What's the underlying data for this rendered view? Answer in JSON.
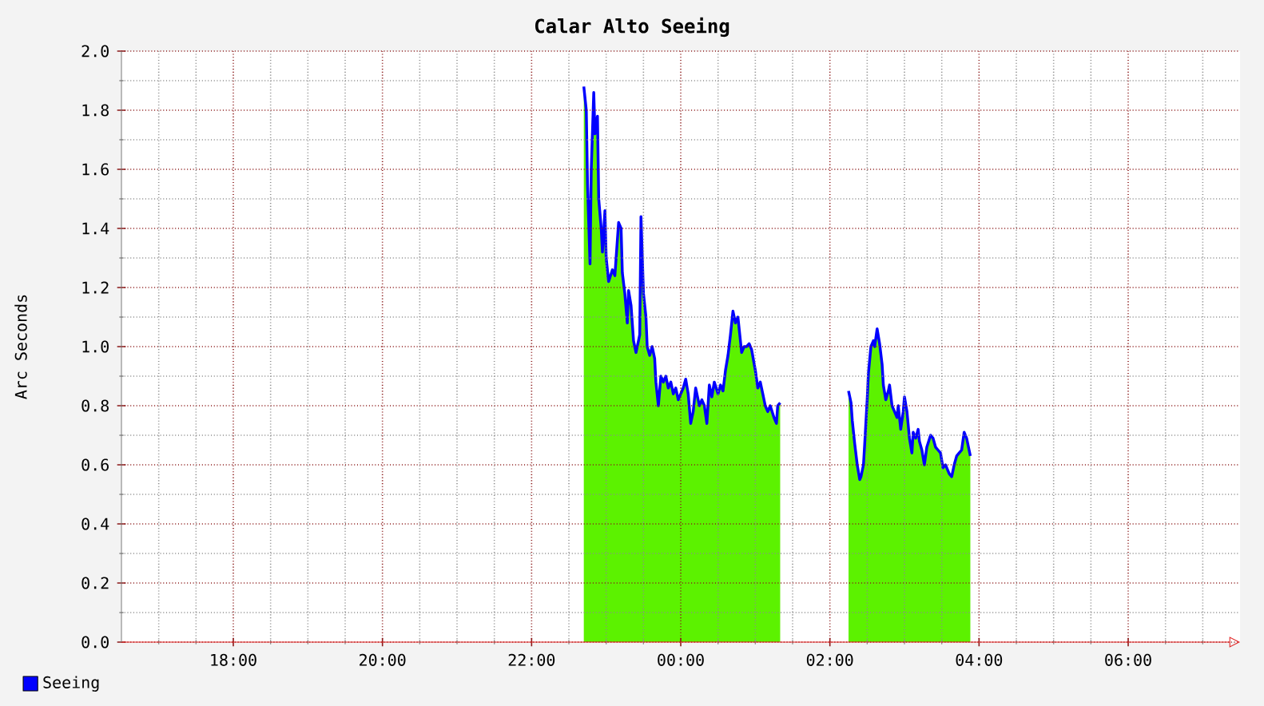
{
  "chart_data": {
    "type": "line",
    "title": "Calar Alto Seeing",
    "ylabel": "Arc Seconds",
    "x": [
      "2000-01-01T22:42",
      "2000-01-01T22:44",
      "2000-01-01T22:45",
      "2000-01-01T22:47",
      "2000-01-01T22:48",
      "2000-01-01T22:50",
      "2000-01-01T22:51",
      "2000-01-01T22:53",
      "2000-01-01T22:54",
      "2000-01-01T22:56",
      "2000-01-01T22:57",
      "2000-01-01T22:59",
      "2000-01-01T23:00",
      "2000-01-01T23:02",
      "2000-01-01T23:05",
      "2000-01-01T23:07",
      "2000-01-01T23:10",
      "2000-01-01T23:12",
      "2000-01-01T23:13",
      "2000-01-01T23:15",
      "2000-01-01T23:17",
      "2000-01-01T23:18",
      "2000-01-01T23:20",
      "2000-01-01T23:22",
      "2000-01-01T23:24",
      "2000-01-01T23:25",
      "2000-01-01T23:27",
      "2000-01-01T23:28",
      "2000-01-01T23:30",
      "2000-01-01T23:32",
      "2000-01-01T23:33",
      "2000-01-01T23:35",
      "2000-01-01T23:37",
      "2000-01-01T23:39",
      "2000-01-01T23:40",
      "2000-01-01T23:42",
      "2000-01-01T23:44",
      "2000-01-01T23:46",
      "2000-01-01T23:48",
      "2000-01-01T23:50",
      "2000-01-01T23:52",
      "2000-01-01T23:54",
      "2000-01-01T23:56",
      "2000-01-01T23:58",
      "2000-01-02T00:00",
      "2000-01-02T00:02",
      "2000-01-02T00:04",
      "2000-01-02T00:06",
      "2000-01-02T00:08",
      "2000-01-02T00:10",
      "2000-01-02T00:12",
      "2000-01-02T00:15",
      "2000-01-02T00:17",
      "2000-01-02T00:19",
      "2000-01-02T00:21",
      "2000-01-02T00:23",
      "2000-01-02T00:25",
      "2000-01-02T00:27",
      "2000-01-02T00:30",
      "2000-01-02T00:32",
      "2000-01-02T00:34",
      "2000-01-02T00:36",
      "2000-01-02T00:38",
      "2000-01-02T00:40",
      "2000-01-02T00:42",
      "2000-01-02T00:44",
      "2000-01-02T00:46",
      "2000-01-02T00:48",
      "2000-01-02T00:49",
      "2000-01-02T00:51",
      "2000-01-02T00:53",
      "2000-01-02T00:55",
      "2000-01-02T00:57",
      "2000-01-02T01:00",
      "2000-01-02T01:02",
      "2000-01-02T01:04",
      "2000-01-02T01:06",
      "2000-01-02T01:08",
      "2000-01-02T01:10",
      "2000-01-02T01:12",
      "2000-01-02T01:15",
      "2000-01-02T01:17",
      "2000-01-02T01:18",
      "2000-01-02T01:20",
      "2000-01-02T01:48",
      "2000-01-02T02:15",
      "2000-01-02T02:17",
      "2000-01-02T02:18",
      "2000-01-02T02:20",
      "2000-01-02T02:22",
      "2000-01-02T02:24",
      "2000-01-02T02:25",
      "2000-01-02T02:27",
      "2000-01-02T02:28",
      "2000-01-02T02:30",
      "2000-01-02T02:31",
      "2000-01-02T02:33",
      "2000-01-02T02:35",
      "2000-01-02T02:36",
      "2000-01-02T02:38",
      "2000-01-02T02:40",
      "2000-01-02T02:42",
      "2000-01-02T02:43",
      "2000-01-02T02:45",
      "2000-01-02T02:47",
      "2000-01-02T02:48",
      "2000-01-02T02:50",
      "2000-01-02T02:52",
      "2000-01-02T02:54",
      "2000-01-02T02:55",
      "2000-01-02T02:57",
      "2000-01-02T02:59",
      "2000-01-02T03:00",
      "2000-01-02T03:02",
      "2000-01-02T03:04",
      "2000-01-02T03:06",
      "2000-01-02T03:07",
      "2000-01-02T03:09",
      "2000-01-02T03:11",
      "2000-01-02T03:12",
      "2000-01-02T03:14",
      "2000-01-02T03:16",
      "2000-01-02T03:18",
      "2000-01-02T03:21",
      "2000-01-02T03:23",
      "2000-01-02T03:25",
      "2000-01-02T03:27",
      "2000-01-02T03:29",
      "2000-01-02T03:31",
      "2000-01-02T03:33",
      "2000-01-02T03:36",
      "2000-01-02T03:38",
      "2000-01-02T03:40",
      "2000-01-02T03:42",
      "2000-01-02T03:44",
      "2000-01-02T03:46",
      "2000-01-02T03:48",
      "2000-01-02T03:50",
      "2000-01-02T03:52",
      "2000-01-02T03:53"
    ],
    "series": [
      {
        "type": "area",
        "color": "#5cf200",
        "values": [
          1.88,
          1.8,
          1.55,
          1.28,
          1.6,
          1.86,
          1.72,
          1.78,
          1.5,
          1.4,
          1.32,
          1.46,
          1.3,
          1.22,
          1.26,
          1.24,
          1.42,
          1.4,
          1.25,
          1.18,
          1.08,
          1.19,
          1.14,
          1.02,
          0.98,
          1.0,
          1.04,
          1.44,
          1.18,
          1.1,
          1.0,
          0.97,
          1.0,
          0.96,
          0.88,
          0.8,
          0.9,
          0.88,
          0.9,
          0.86,
          0.88,
          0.84,
          0.86,
          0.82,
          0.84,
          0.86,
          0.89,
          0.84,
          0.74,
          0.78,
          0.86,
          0.8,
          0.82,
          0.8,
          0.74,
          0.87,
          0.83,
          0.88,
          0.84,
          0.87,
          0.85,
          0.92,
          0.97,
          1.04,
          1.12,
          1.08,
          1.1,
          1.02,
          0.98,
          1.0,
          1.0,
          1.01,
          0.99,
          0.92,
          0.86,
          0.88,
          0.84,
          0.8,
          0.78,
          0.8,
          0.76,
          0.74,
          0.8,
          0.81,
          null,
          0.85,
          0.81,
          0.75,
          0.67,
          0.6,
          0.55,
          0.56,
          0.6,
          0.67,
          0.82,
          0.91,
          1.0,
          1.02,
          1.0,
          1.06,
          1.01,
          0.94,
          0.87,
          0.82,
          0.85,
          0.87,
          0.8,
          0.78,
          0.76,
          0.8,
          0.72,
          0.78,
          0.83,
          0.78,
          0.69,
          0.64,
          0.71,
          0.69,
          0.72,
          0.68,
          0.65,
          0.6,
          0.66,
          0.7,
          0.69,
          0.66,
          0.65,
          0.64,
          0.59,
          0.6,
          0.57,
          0.56,
          0.6,
          0.63,
          0.64,
          0.65,
          0.71,
          0.69,
          0.65,
          0.63
        ]
      },
      {
        "name": "Seeing",
        "color": "#0000ff",
        "values": [
          1.88,
          1.8,
          1.55,
          1.28,
          1.6,
          1.86,
          1.72,
          1.78,
          1.5,
          1.4,
          1.32,
          1.46,
          1.3,
          1.22,
          1.26,
          1.24,
          1.42,
          1.4,
          1.25,
          1.18,
          1.08,
          1.19,
          1.14,
          1.02,
          0.98,
          1.0,
          1.04,
          1.44,
          1.18,
          1.1,
          1.0,
          0.97,
          1.0,
          0.96,
          0.88,
          0.8,
          0.9,
          0.88,
          0.9,
          0.86,
          0.88,
          0.84,
          0.86,
          0.82,
          0.84,
          0.86,
          0.89,
          0.84,
          0.74,
          0.78,
          0.86,
          0.8,
          0.82,
          0.8,
          0.74,
          0.87,
          0.83,
          0.88,
          0.84,
          0.87,
          0.85,
          0.92,
          0.97,
          1.04,
          1.12,
          1.08,
          1.1,
          1.02,
          0.98,
          1.0,
          1.0,
          1.01,
          0.99,
          0.92,
          0.86,
          0.88,
          0.84,
          0.8,
          0.78,
          0.8,
          0.76,
          0.74,
          0.8,
          0.81,
          null,
          0.85,
          0.81,
          0.75,
          0.67,
          0.6,
          0.55,
          0.56,
          0.6,
          0.67,
          0.82,
          0.91,
          1.0,
          1.02,
          1.0,
          1.06,
          1.01,
          0.94,
          0.87,
          0.82,
          0.85,
          0.87,
          0.8,
          0.78,
          0.76,
          0.8,
          0.72,
          0.78,
          0.83,
          0.78,
          0.69,
          0.64,
          0.71,
          0.69,
          0.72,
          0.68,
          0.65,
          0.6,
          0.66,
          0.7,
          0.69,
          0.66,
          0.65,
          0.64,
          0.59,
          0.6,
          0.57,
          0.56,
          0.6,
          0.63,
          0.64,
          0.65,
          0.71,
          0.69,
          0.65,
          0.63
        ]
      }
    ],
    "xlim": [
      "2000-01-01T16:30",
      "2000-01-02T07:30"
    ],
    "xticks": [
      {
        "value": "2000-01-01T17:00",
        "label": null
      },
      {
        "value": "2000-01-01T17:30",
        "label": null
      },
      {
        "value": "2000-01-01T18:00",
        "label": "18:00"
      },
      {
        "value": "2000-01-01T18:30",
        "label": null
      },
      {
        "value": "2000-01-01T19:00",
        "label": null
      },
      {
        "value": "2000-01-01T19:30",
        "label": null
      },
      {
        "value": "2000-01-01T20:00",
        "label": "20:00"
      },
      {
        "value": "2000-01-01T20:30",
        "label": null
      },
      {
        "value": "2000-01-01T21:00",
        "label": null
      },
      {
        "value": "2000-01-01T21:30",
        "label": null
      },
      {
        "value": "2000-01-01T22:00",
        "label": "22:00"
      },
      {
        "value": "2000-01-01T22:30",
        "label": null
      },
      {
        "value": "2000-01-01T23:00",
        "label": null
      },
      {
        "value": "2000-01-01T23:30",
        "label": null
      },
      {
        "value": "2000-01-02T00:00",
        "label": "00:00"
      },
      {
        "value": "2000-01-02T00:30",
        "label": null
      },
      {
        "value": "2000-01-02T01:00",
        "label": null
      },
      {
        "value": "2000-01-02T01:30",
        "label": null
      },
      {
        "value": "2000-01-02T02:00",
        "label": "02:00"
      },
      {
        "value": "2000-01-02T02:30",
        "label": null
      },
      {
        "value": "2000-01-02T03:00",
        "label": null
      },
      {
        "value": "2000-01-02T03:30",
        "label": null
      },
      {
        "value": "2000-01-02T04:00",
        "label": "04:00"
      },
      {
        "value": "2000-01-02T04:30",
        "label": null
      },
      {
        "value": "2000-01-02T05:00",
        "label": null
      },
      {
        "value": "2000-01-02T05:30",
        "label": null
      },
      {
        "value": "2000-01-02T06:00",
        "label": "06:00"
      },
      {
        "value": "2000-01-02T06:30",
        "label": null
      },
      {
        "value": "2000-01-02T07:00",
        "label": null
      }
    ],
    "ylim": [
      0,
      2.0
    ],
    "yticks": [
      {
        "value": 0,
        "label": "0.0"
      },
      {
        "value": 0.1,
        "label": null
      },
      {
        "value": 0.2,
        "label": "0.2"
      },
      {
        "value": 0.3,
        "label": null
      },
      {
        "value": 0.4,
        "label": "0.4"
      },
      {
        "value": 0.5,
        "label": null
      },
      {
        "value": 0.6,
        "label": "0.6"
      },
      {
        "value": 0.7,
        "label": null
      },
      {
        "value": 0.8,
        "label": "0.8"
      },
      {
        "value": 0.9,
        "label": null
      },
      {
        "value": 1.0,
        "label": "1.0"
      },
      {
        "value": 1.1,
        "label": null
      },
      {
        "value": 1.2,
        "label": "1.2"
      },
      {
        "value": 1.3,
        "label": null
      },
      {
        "value": 1.4,
        "label": "1.4"
      },
      {
        "value": 1.5,
        "label": null
      },
      {
        "value": 1.6,
        "label": "1.6"
      },
      {
        "value": 1.7,
        "label": null
      },
      {
        "value": 1.8,
        "label": "1.8"
      },
      {
        "value": 1.9,
        "label": null
      },
      {
        "value": 2.0,
        "label": "2.0"
      }
    ],
    "grid": true,
    "legend": "bottom left"
  }
}
